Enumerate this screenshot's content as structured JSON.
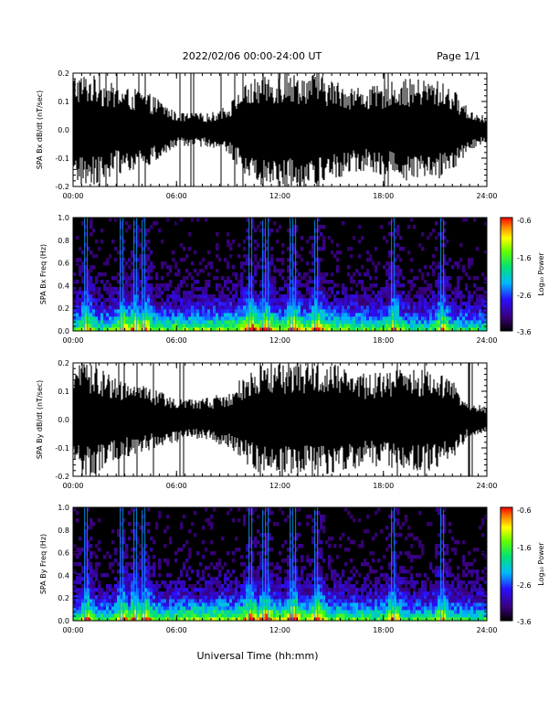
{
  "header": {
    "title": "2022/02/06  00:00-24:00 UT",
    "page": "Page 1/1"
  },
  "footer": {
    "xlabel": "Universal Time (hh:mm)"
  },
  "colorbar": {
    "label": "Log₁₀ Power",
    "ticks": [
      "-0.6",
      "-1.6",
      "-2.6",
      "-3.6"
    ],
    "range": [
      -3.6,
      -0.6
    ]
  },
  "chart_data": [
    {
      "type": "line",
      "ylabel": "SPA Bx dB/dt (nT/sec)",
      "xlim_hours": [
        0,
        24
      ],
      "ylim": [
        -0.2,
        0.2
      ],
      "x_tick_labels": [
        "00:00",
        "06:00",
        "12:00",
        "18:00",
        "24:00"
      ],
      "y_tick_labels": [
        "0.2",
        "0.1",
        "0.0",
        "-0.1",
        "-0.2"
      ],
      "envelope_hours": [
        0,
        1,
        2,
        3,
        4,
        5,
        6,
        7,
        8,
        9,
        10,
        11,
        12,
        13,
        14,
        15,
        16,
        17,
        18,
        19,
        20,
        21,
        22,
        23,
        24
      ],
      "envelope_amplitude": [
        0.2,
        0.2,
        0.17,
        0.15,
        0.14,
        0.11,
        0.06,
        0.06,
        0.06,
        0.09,
        0.16,
        0.2,
        0.2,
        0.2,
        0.2,
        0.18,
        0.16,
        0.15,
        0.16,
        0.18,
        0.18,
        0.18,
        0.15,
        0.07,
        0.05
      ]
    },
    {
      "type": "heatmap",
      "ylabel": "SPA Bx Freq (Hz)",
      "xlim_hours": [
        0,
        24
      ],
      "ylim": [
        0,
        1.0
      ],
      "x_tick_labels": [
        "00:00",
        "06:00",
        "12:00",
        "18:00",
        "24:00"
      ],
      "y_tick_labels": [
        "1.0",
        "0.8",
        "0.6",
        "0.4",
        "0.2",
        "0.0"
      ],
      "colorbar_label": "Log₁₀ Power",
      "color_range": [
        -3.6,
        -0.6
      ],
      "burst_hours": [
        0.8,
        2.9,
        3.6,
        4.2,
        10.3,
        11.2,
        12.8,
        14.2,
        18.6,
        21.4
      ]
    },
    {
      "type": "line",
      "ylabel": "SPA By dB/dt (nT/sec)",
      "xlim_hours": [
        0,
        24
      ],
      "ylim": [
        -0.2,
        0.2
      ],
      "x_tick_labels": [
        "00:00",
        "06:00",
        "12:00",
        "18:00",
        "24:00"
      ],
      "y_tick_labels": [
        "0.2",
        "0.1",
        "0.0",
        "-0.1",
        "-0.2"
      ],
      "envelope_hours": [
        0,
        1,
        2,
        3,
        4,
        5,
        6,
        7,
        8,
        9,
        10,
        11,
        12,
        13,
        14,
        15,
        16,
        17,
        18,
        19,
        20,
        21,
        22,
        23,
        24
      ],
      "envelope_amplitude": [
        0.2,
        0.2,
        0.17,
        0.14,
        0.12,
        0.1,
        0.08,
        0.07,
        0.08,
        0.1,
        0.16,
        0.2,
        0.2,
        0.2,
        0.2,
        0.2,
        0.18,
        0.16,
        0.17,
        0.18,
        0.18,
        0.18,
        0.14,
        0.06,
        0.05
      ]
    },
    {
      "type": "heatmap",
      "ylabel": "SPA By Freq (Hz)",
      "xlim_hours": [
        0,
        24
      ],
      "ylim": [
        0,
        1.0
      ],
      "x_tick_labels": [
        "00:00",
        "06:00",
        "12:00",
        "18:00",
        "24:00"
      ],
      "y_tick_labels": [
        "1.0",
        "0.8",
        "0.6",
        "0.4",
        "0.2",
        "0.0"
      ],
      "colorbar_label": "Log₁₀ Power",
      "color_range": [
        -3.6,
        -0.6
      ],
      "burst_hours": [
        0.8,
        2.9,
        3.6,
        4.2,
        10.3,
        11.2,
        12.8,
        14.2,
        18.6,
        21.4
      ]
    }
  ]
}
